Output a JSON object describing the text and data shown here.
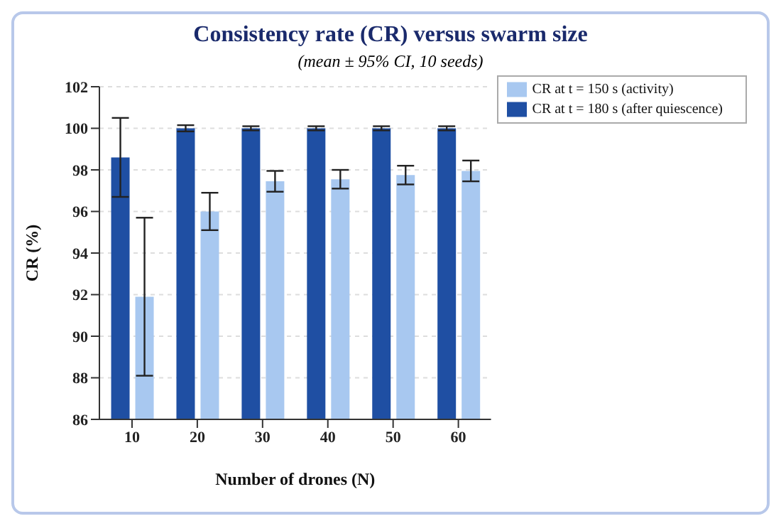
{
  "chart_data": {
    "type": "bar",
    "title": "Consistency rate (CR) versus swarm size",
    "subtitle": "(mean ± 95% CI, 10 seeds)",
    "xlabel": "Number of drones (N)",
    "ylabel": "CR (%)",
    "categories": [
      "10",
      "20",
      "30",
      "40",
      "50",
      "60"
    ],
    "series": [
      {
        "name": "CR at t = 180 s (after quiescence)",
        "color": "#1f4fa3",
        "values": [
          98.6,
          100,
          100,
          100,
          100,
          100
        ],
        "errors": [
          1.9,
          0.15,
          0.1,
          0.1,
          0.1,
          0.1
        ]
      },
      {
        "name": "CR at t = 150 s (activity)",
        "color": "#a8c8f0",
        "values": [
          91.9,
          96.0,
          97.45,
          97.55,
          97.75,
          97.95
        ],
        "errors": [
          3.8,
          0.9,
          0.5,
          0.45,
          0.45,
          0.5
        ]
      }
    ],
    "ylim": [
      86,
      102
    ],
    "yticks": [
      86,
      88,
      90,
      92,
      94,
      96,
      98,
      100,
      102
    ],
    "grid": "y",
    "legend": "top right"
  }
}
